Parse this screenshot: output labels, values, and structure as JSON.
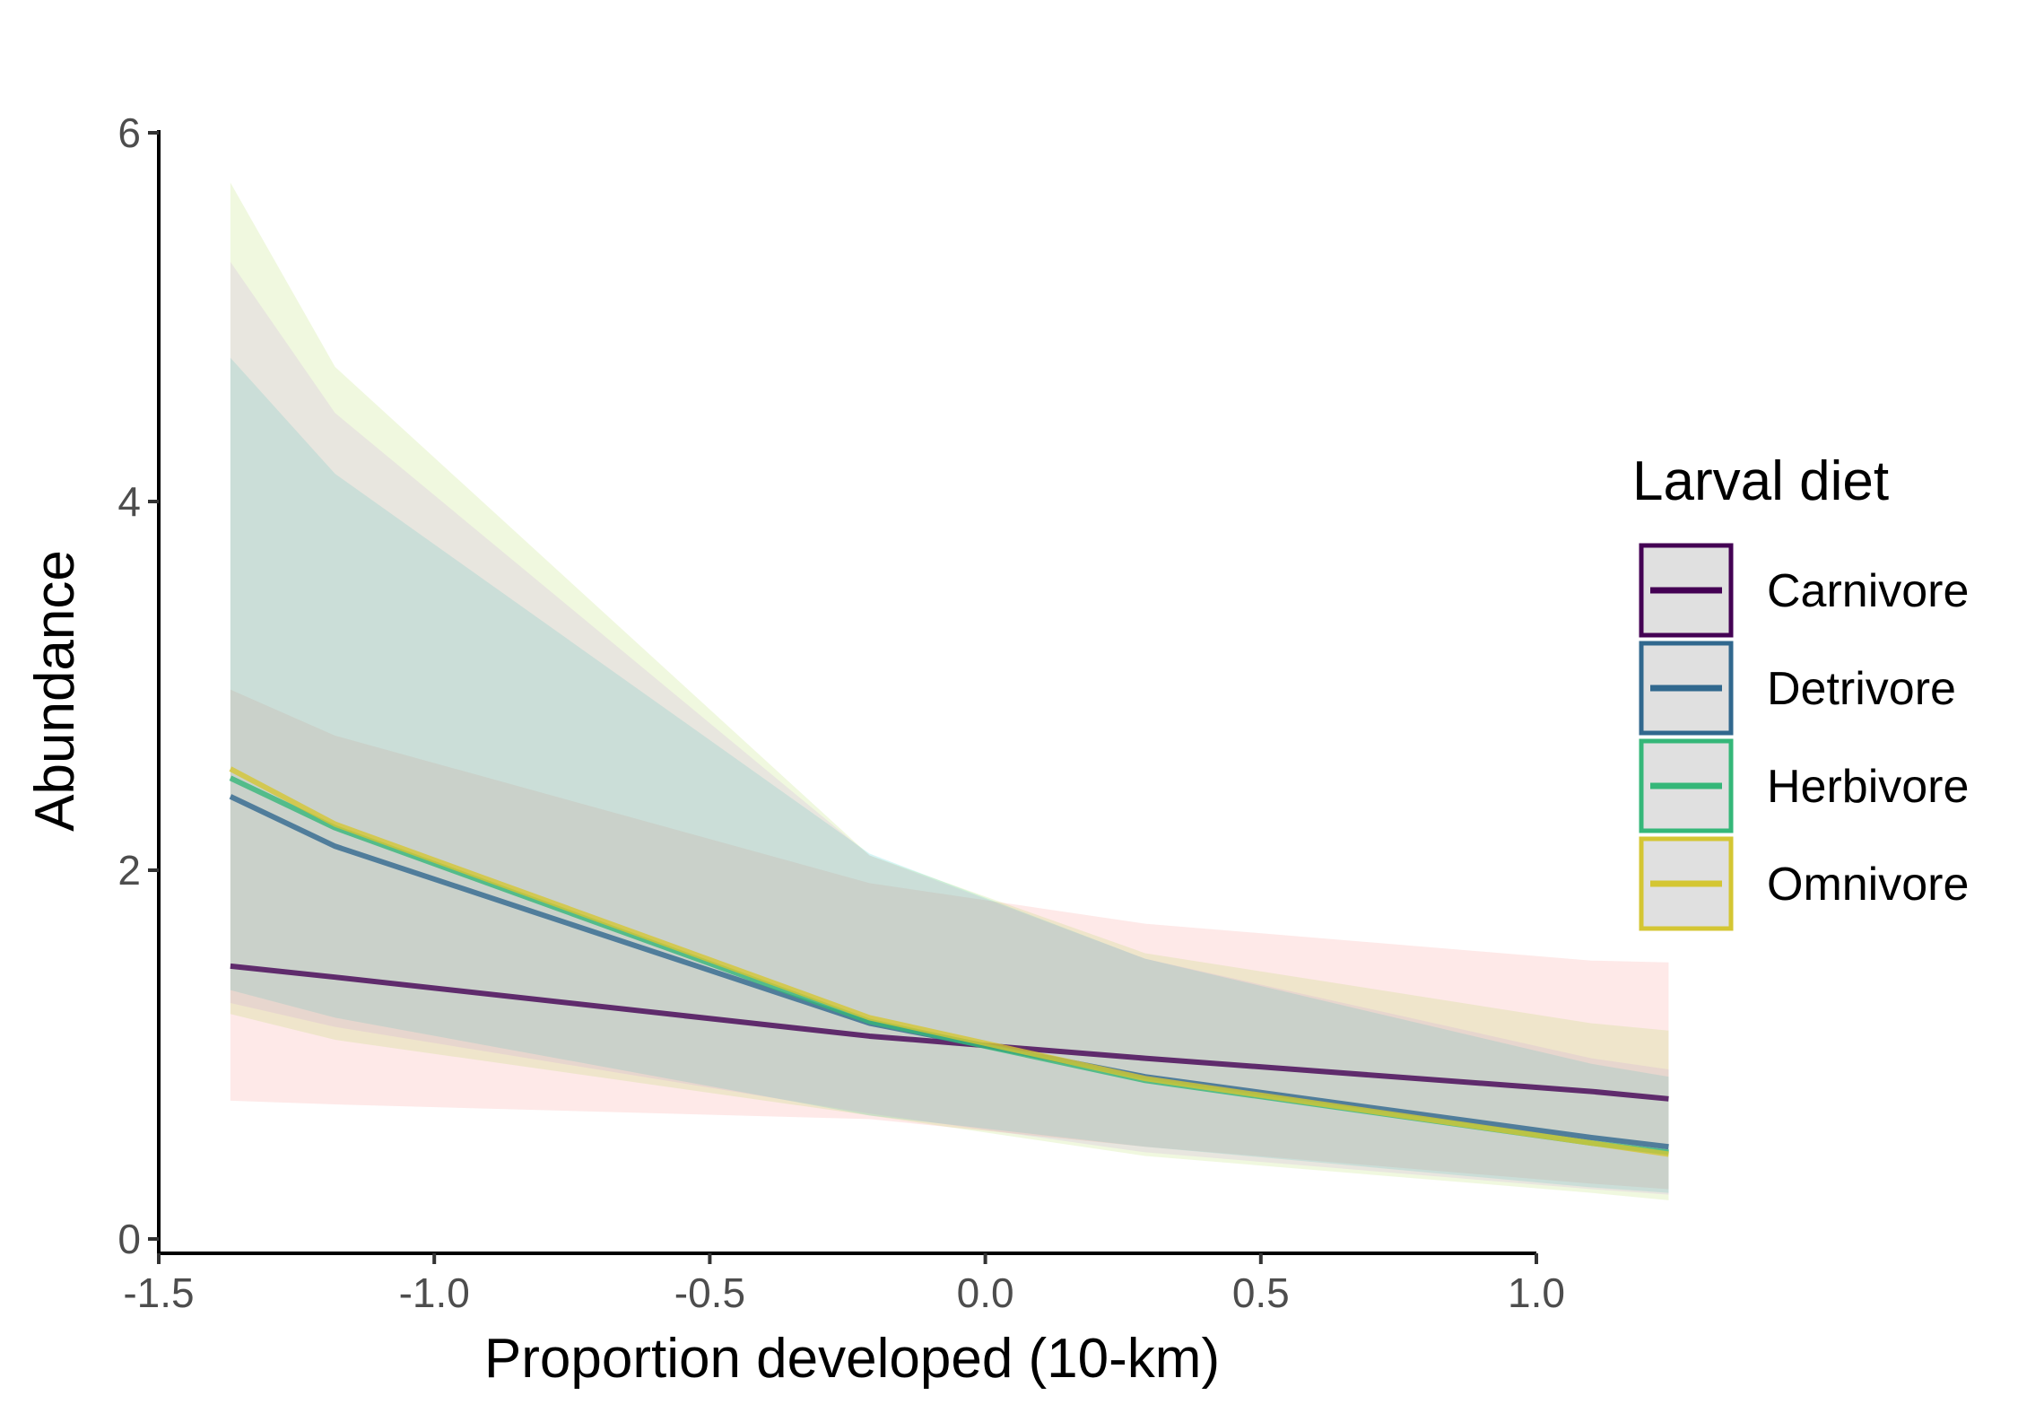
{
  "chart_data": {
    "type": "line",
    "xlabel": "Proportion developed (10-km)",
    "ylabel": "Abundance",
    "xlim": [
      -1.5,
      1.35
    ],
    "ylim": [
      0,
      6
    ],
    "xticks": [
      -1.5,
      -1.0,
      -0.5,
      0.0,
      0.5,
      1.0
    ],
    "xtick_labels": [
      "-1.5",
      "-1.0",
      "-0.5",
      "0.0",
      "0.5",
      "1.0"
    ],
    "yticks": [
      0,
      2,
      4,
      6
    ],
    "ytick_labels": [
      "0",
      "2",
      "4",
      "6"
    ],
    "legend": {
      "title": "Larval diet",
      "position": "right"
    },
    "series": [
      {
        "name": "Carnivore",
        "color": "#440154",
        "ribbon_color": "#f8766d",
        "x": [
          -1.37,
          -1.18,
          -0.21,
          0.29,
          1.1,
          1.24
        ],
        "y": [
          1.48,
          1.42,
          1.1,
          0.98,
          0.8,
          0.76
        ],
        "lower": [
          0.75,
          0.73,
          0.65,
          0.5,
          0.3,
          0.27
        ],
        "upper": [
          2.98,
          2.73,
          1.93,
          1.71,
          1.51,
          1.5
        ]
      },
      {
        "name": "Detrivore",
        "color": "#31688e",
        "ribbon_color": "#00bfc4",
        "x": [
          -1.37,
          -1.18,
          -0.21,
          0.29,
          1.1,
          1.24
        ],
        "y": [
          2.4,
          2.13,
          1.17,
          0.88,
          0.55,
          0.5
        ],
        "lower": [
          1.35,
          1.2,
          0.67,
          0.5,
          0.28,
          0.25
        ],
        "upper": [
          4.78,
          4.15,
          2.09,
          1.52,
          0.95,
          0.88
        ]
      },
      {
        "name": "Herbivore",
        "color": "#35b779",
        "ribbon_color": "#c77cff",
        "x": [
          -1.37,
          -1.18,
          -0.21,
          0.29,
          1.1,
          1.24
        ],
        "y": [
          2.5,
          2.23,
          1.18,
          0.86,
          0.52,
          0.47
        ],
        "lower": [
          1.28,
          1.15,
          0.68,
          0.47,
          0.27,
          0.24
        ],
        "upper": [
          5.3,
          4.48,
          2.08,
          1.52,
          0.98,
          0.92
        ]
      },
      {
        "name": "Omnivore",
        "color": "#d4c633",
        "ribbon_color": "#9fd63a",
        "x": [
          -1.37,
          -1.18,
          -0.21,
          0.29,
          1.1,
          1.24
        ],
        "y": [
          2.55,
          2.25,
          1.2,
          0.87,
          0.52,
          0.46
        ],
        "lower": [
          1.22,
          1.08,
          0.67,
          0.45,
          0.25,
          0.21
        ],
        "upper": [
          5.73,
          4.73,
          2.08,
          1.55,
          1.17,
          1.13
        ]
      }
    ]
  }
}
